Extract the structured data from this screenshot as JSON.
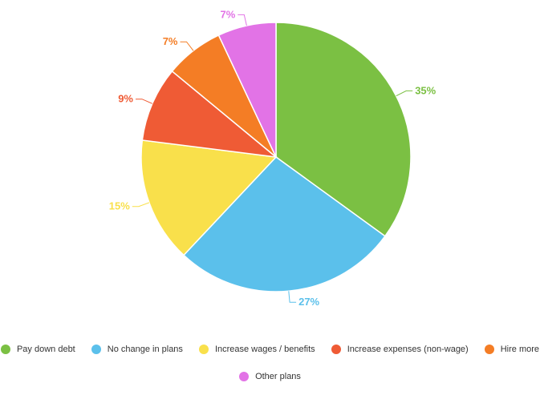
{
  "chart_data": {
    "type": "pie",
    "title": "",
    "slices": [
      {
        "label": "Pay down debt",
        "value": 35,
        "display": "35%",
        "color": "#7bc043"
      },
      {
        "label": "No change in plans",
        "value": 27,
        "display": "27%",
        "color": "#5bc0eb"
      },
      {
        "label": "Increase wages / benefits",
        "value": 15,
        "display": "15%",
        "color": "#f9e04b"
      },
      {
        "label": "Increase expenses (non-wage)",
        "value": 9,
        "display": "9%",
        "color": "#ef5b35"
      },
      {
        "label": "Hire more",
        "value": 7,
        "display": "7%",
        "color": "#f47d25"
      },
      {
        "label": "Other plans",
        "value": 7,
        "display": "7%",
        "color": "#e273e6"
      }
    ],
    "legend_position": "bottom"
  }
}
